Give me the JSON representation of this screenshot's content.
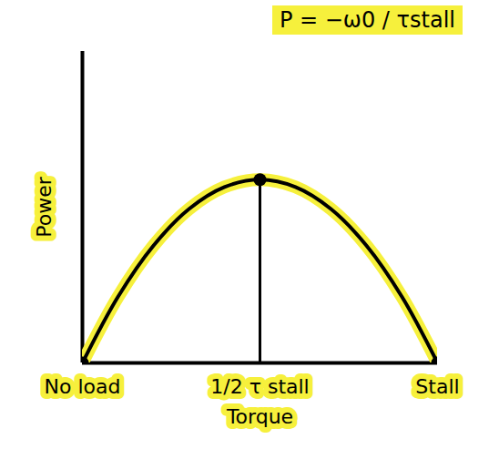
{
  "chart_data": {
    "type": "line",
    "title": "P = −ω0 / τstall",
    "x_label": "Torque",
    "y_label": "Power",
    "x": [
      0,
      0.1,
      0.2,
      0.3,
      0.4,
      0.5,
      0.6,
      0.7,
      0.8,
      0.9,
      1
    ],
    "values": [
      0,
      0.36,
      0.64,
      0.84,
      0.96,
      1,
      0.96,
      0.84,
      0.64,
      0.36,
      0
    ],
    "color": "#000000",
    "xlim": [
      0,
      1
    ],
    "ylim": [
      0,
      1.7
    ],
    "xticks": [
      {
        "value": 0,
        "label": "No load"
      },
      {
        "value": 0.5,
        "label": "1/2 τ stall"
      },
      {
        "value": 1,
        "label": "Stall"
      }
    ],
    "yticks": [],
    "tick_labels": "x"
  }
}
